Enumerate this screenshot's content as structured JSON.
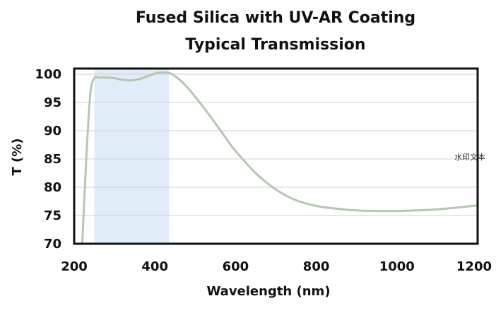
{
  "chart_data": {
    "type": "line",
    "title": "Fused Silica with UV-AR Coating",
    "subtitle": "Typical Transmission",
    "xlabel": "Wavelength (nm)",
    "ylabel": "T (%)",
    "xlim": [
      200,
      1200
    ],
    "ylim": [
      70,
      101
    ],
    "xticks": [
      "200",
      "400",
      "600",
      "800",
      "1000",
      "1200"
    ],
    "yticks": [
      "70",
      "75",
      "80",
      "85",
      "90",
      "95",
      "100"
    ],
    "grid": true,
    "legend": "none",
    "highlight_band": {
      "x": [
        250,
        435
      ],
      "color": "#e0ecf7"
    },
    "series": [
      {
        "color": "#b4c7b0",
        "x": [
          220,
          230,
          240,
          250,
          260,
          280,
          300,
          320,
          340,
          360,
          380,
          400,
          420,
          440,
          460,
          480,
          500,
          520,
          540,
          560,
          580,
          600,
          650,
          700,
          750,
          800,
          850,
          900,
          950,
          1000,
          1050,
          1100,
          1150,
          1200
        ],
        "y": [
          70,
          85,
          96.5,
          99.3,
          99.4,
          99.4,
          99.3,
          99.0,
          98.9,
          99.1,
          99.6,
          100.1,
          100.3,
          100.1,
          99.1,
          97.7,
          96.0,
          94.2,
          92.3,
          90.3,
          88.3,
          86.4,
          82.5,
          79.6,
          77.7,
          76.7,
          76.2,
          75.9,
          75.8,
          75.8,
          75.9,
          76.1,
          76.4,
          76.8
        ]
      }
    ]
  },
  "watermark": "水印文本"
}
